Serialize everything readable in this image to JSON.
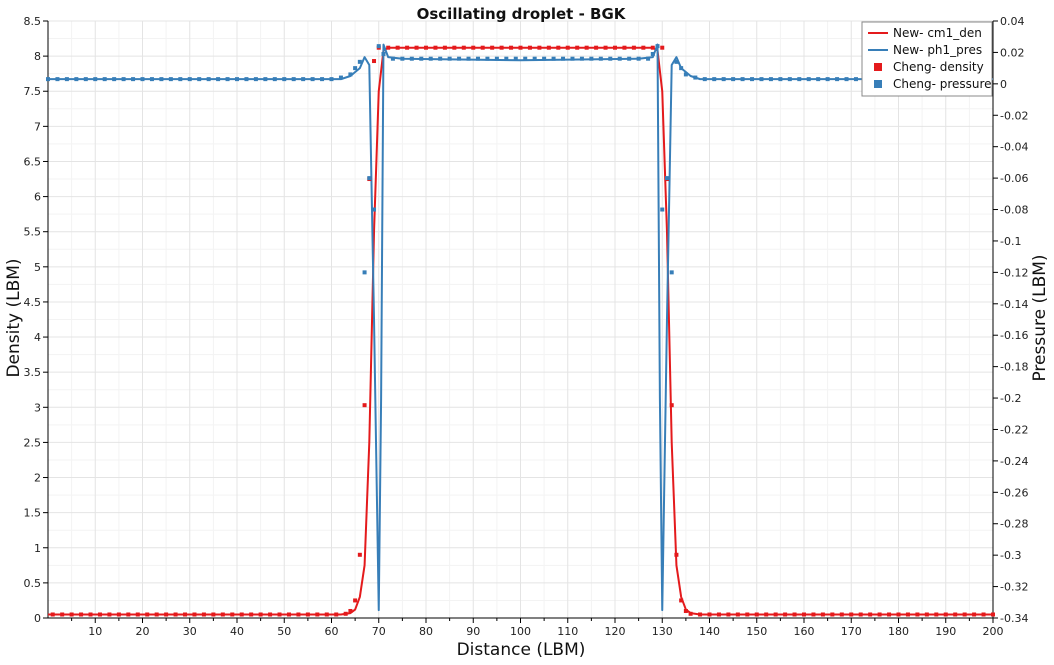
{
  "chart_data": {
    "type": "line",
    "title": "Oscillating droplet - BGK",
    "xlabel": "Distance (LBM)",
    "ylabel": "Density (LBM)",
    "y2label": "Pressure (LBM)",
    "xlim": [
      0,
      200
    ],
    "ylim": [
      0,
      8.5
    ],
    "y2lim": [
      -0.34,
      0.04
    ],
    "x_ticks": [
      10,
      20,
      30,
      40,
      50,
      60,
      70,
      80,
      90,
      100,
      110,
      120,
      130,
      140,
      150,
      160,
      170,
      180,
      190,
      200
    ],
    "y_ticks": [
      0,
      0.5,
      1,
      1.5,
      2,
      2.5,
      3,
      3.5,
      4,
      4.5,
      5,
      5.5,
      6,
      6.5,
      7,
      7.5,
      8,
      8.5
    ],
    "y2_ticks": [
      0.04,
      0.02,
      0,
      -0.02,
      -0.04,
      -0.06,
      -0.08,
      -0.1,
      -0.12,
      -0.14,
      -0.16,
      -0.18,
      -0.2,
      -0.22,
      -0.24,
      -0.26,
      -0.28,
      -0.3,
      -0.32,
      -0.34
    ],
    "grid": true,
    "legend_position": "top-right",
    "colors": {
      "red": "#e41a1c",
      "blue": "#377eb8"
    },
    "series": [
      {
        "name": "New- cm1_den",
        "kind": "line",
        "axis": "left",
        "color": "#e41a1c",
        "points": [
          [
            0,
            0.05
          ],
          [
            62,
            0.05
          ],
          [
            64,
            0.07
          ],
          [
            65,
            0.12
          ],
          [
            66,
            0.3
          ],
          [
            67,
            0.75
          ],
          [
            68,
            2.5
          ],
          [
            69,
            5.5
          ],
          [
            70,
            7.5
          ],
          [
            71,
            8.08
          ],
          [
            72,
            8.12
          ],
          [
            128,
            8.12
          ],
          [
            129,
            8.08
          ],
          [
            130,
            7.5
          ],
          [
            131,
            5.5
          ],
          [
            132,
            2.5
          ],
          [
            133,
            0.75
          ],
          [
            134,
            0.3
          ],
          [
            135,
            0.12
          ],
          [
            136,
            0.07
          ],
          [
            138,
            0.05
          ],
          [
            200,
            0.05
          ]
        ]
      },
      {
        "name": "New- ph1_pres",
        "kind": "line",
        "axis": "right",
        "color": "#377eb8",
        "points": [
          [
            0,
            0.003
          ],
          [
            62,
            0.003
          ],
          [
            64,
            0.005
          ],
          [
            66,
            0.01
          ],
          [
            67,
            0.017
          ],
          [
            68,
            0.012
          ],
          [
            69,
            -0.15
          ],
          [
            70,
            -0.335
          ],
          [
            70.5,
            -0.2
          ],
          [
            71,
            0.025
          ],
          [
            72,
            0.017
          ],
          [
            75,
            0.016
          ],
          [
            100,
            0.015
          ],
          [
            125,
            0.016
          ],
          [
            128,
            0.017
          ],
          [
            129,
            0.025
          ],
          [
            129.5,
            -0.2
          ],
          [
            130,
            -0.335
          ],
          [
            131,
            -0.15
          ],
          [
            132,
            0.012
          ],
          [
            133,
            0.017
          ],
          [
            134,
            0.01
          ],
          [
            136,
            0.005
          ],
          [
            138,
            0.003
          ],
          [
            200,
            0.003
          ]
        ]
      },
      {
        "name": "Cheng- density",
        "kind": "scatter",
        "axis": "left",
        "color": "#e41a1c",
        "points": [
          [
            1,
            0.05
          ],
          [
            3,
            0.05
          ],
          [
            5,
            0.05
          ],
          [
            7,
            0.05
          ],
          [
            9,
            0.05
          ],
          [
            11,
            0.05
          ],
          [
            13,
            0.05
          ],
          [
            15,
            0.05
          ],
          [
            17,
            0.05
          ],
          [
            19,
            0.05
          ],
          [
            21,
            0.05
          ],
          [
            23,
            0.05
          ],
          [
            25,
            0.05
          ],
          [
            27,
            0.05
          ],
          [
            29,
            0.05
          ],
          [
            31,
            0.05
          ],
          [
            33,
            0.05
          ],
          [
            35,
            0.05
          ],
          [
            37,
            0.05
          ],
          [
            39,
            0.05
          ],
          [
            41,
            0.05
          ],
          [
            43,
            0.05
          ],
          [
            45,
            0.05
          ],
          [
            47,
            0.05
          ],
          [
            49,
            0.05
          ],
          [
            51,
            0.05
          ],
          [
            53,
            0.05
          ],
          [
            55,
            0.05
          ],
          [
            57,
            0.05
          ],
          [
            59,
            0.05
          ],
          [
            61,
            0.05
          ],
          [
            63,
            0.06
          ],
          [
            64,
            0.1
          ],
          [
            65,
            0.25
          ],
          [
            66,
            0.9
          ],
          [
            67,
            3.03
          ],
          [
            68,
            6.25
          ],
          [
            69,
            7.93
          ],
          [
            70,
            8.12
          ],
          [
            72,
            8.12
          ],
          [
            74,
            8.12
          ],
          [
            76,
            8.12
          ],
          [
            78,
            8.12
          ],
          [
            80,
            8.12
          ],
          [
            82,
            8.12
          ],
          [
            84,
            8.12
          ],
          [
            86,
            8.12
          ],
          [
            88,
            8.12
          ],
          [
            90,
            8.12
          ],
          [
            92,
            8.12
          ],
          [
            94,
            8.12
          ],
          [
            96,
            8.12
          ],
          [
            98,
            8.12
          ],
          [
            100,
            8.12
          ],
          [
            102,
            8.12
          ],
          [
            104,
            8.12
          ],
          [
            106,
            8.12
          ],
          [
            108,
            8.12
          ],
          [
            110,
            8.12
          ],
          [
            112,
            8.12
          ],
          [
            114,
            8.12
          ],
          [
            116,
            8.12
          ],
          [
            118,
            8.12
          ],
          [
            120,
            8.12
          ],
          [
            122,
            8.12
          ],
          [
            124,
            8.12
          ],
          [
            126,
            8.12
          ],
          [
            128,
            8.12
          ],
          [
            130,
            8.12
          ],
          [
            131,
            6.25
          ],
          [
            132,
            3.03
          ],
          [
            133,
            0.9
          ],
          [
            134,
            0.25
          ],
          [
            135,
            0.1
          ],
          [
            136,
            0.06
          ],
          [
            138,
            0.05
          ],
          [
            140,
            0.05
          ],
          [
            142,
            0.05
          ],
          [
            144,
            0.05
          ],
          [
            146,
            0.05
          ],
          [
            148,
            0.05
          ],
          [
            150,
            0.05
          ],
          [
            152,
            0.05
          ],
          [
            154,
            0.05
          ],
          [
            156,
            0.05
          ],
          [
            158,
            0.05
          ],
          [
            160,
            0.05
          ],
          [
            162,
            0.05
          ],
          [
            164,
            0.05
          ],
          [
            166,
            0.05
          ],
          [
            168,
            0.05
          ],
          [
            170,
            0.05
          ],
          [
            172,
            0.05
          ],
          [
            174,
            0.05
          ],
          [
            176,
            0.05
          ],
          [
            178,
            0.05
          ],
          [
            180,
            0.05
          ],
          [
            182,
            0.05
          ],
          [
            184,
            0.05
          ],
          [
            186,
            0.05
          ],
          [
            188,
            0.05
          ],
          [
            190,
            0.05
          ],
          [
            192,
            0.05
          ],
          [
            194,
            0.05
          ],
          [
            196,
            0.05
          ],
          [
            198,
            0.05
          ],
          [
            200,
            0.05
          ]
        ]
      },
      {
        "name": "Cheng- pressure",
        "kind": "scatter",
        "axis": "right",
        "color": "#377eb8",
        "points": [
          [
            0,
            0.003
          ],
          [
            2,
            0.003
          ],
          [
            4,
            0.003
          ],
          [
            6,
            0.003
          ],
          [
            8,
            0.003
          ],
          [
            10,
            0.003
          ],
          [
            12,
            0.003
          ],
          [
            14,
            0.003
          ],
          [
            16,
            0.003
          ],
          [
            18,
            0.003
          ],
          [
            20,
            0.003
          ],
          [
            22,
            0.003
          ],
          [
            24,
            0.003
          ],
          [
            26,
            0.003
          ],
          [
            28,
            0.003
          ],
          [
            30,
            0.003
          ],
          [
            32,
            0.003
          ],
          [
            34,
            0.003
          ],
          [
            36,
            0.003
          ],
          [
            38,
            0.003
          ],
          [
            40,
            0.003
          ],
          [
            42,
            0.003
          ],
          [
            44,
            0.003
          ],
          [
            46,
            0.003
          ],
          [
            48,
            0.003
          ],
          [
            50,
            0.003
          ],
          [
            52,
            0.003
          ],
          [
            54,
            0.003
          ],
          [
            56,
            0.003
          ],
          [
            58,
            0.003
          ],
          [
            60,
            0.003
          ],
          [
            62,
            0.004
          ],
          [
            64,
            0.006
          ],
          [
            65,
            0.01
          ],
          [
            66,
            0.014
          ],
          [
            67,
            -0.12
          ],
          [
            68,
            -0.06
          ],
          [
            69,
            -0.08
          ],
          [
            70,
            0.024
          ],
          [
            71,
            0.019
          ],
          [
            73,
            0.016
          ],
          [
            75,
            0.016
          ],
          [
            77,
            0.016
          ],
          [
            79,
            0.016
          ],
          [
            81,
            0.016
          ],
          [
            83,
            0.016
          ],
          [
            85,
            0.016
          ],
          [
            87,
            0.016
          ],
          [
            89,
            0.016
          ],
          [
            91,
            0.016
          ],
          [
            93,
            0.016
          ],
          [
            95,
            0.016
          ],
          [
            97,
            0.016
          ],
          [
            99,
            0.016
          ],
          [
            101,
            0.016
          ],
          [
            103,
            0.016
          ],
          [
            105,
            0.016
          ],
          [
            107,
            0.016
          ],
          [
            109,
            0.016
          ],
          [
            111,
            0.016
          ],
          [
            113,
            0.016
          ],
          [
            115,
            0.016
          ],
          [
            117,
            0.016
          ],
          [
            119,
            0.016
          ],
          [
            121,
            0.016
          ],
          [
            123,
            0.016
          ],
          [
            125,
            0.016
          ],
          [
            127,
            0.016
          ],
          [
            128,
            0.019
          ],
          [
            129,
            0.024
          ],
          [
            130,
            -0.08
          ],
          [
            131,
            -0.06
          ],
          [
            132,
            -0.12
          ],
          [
            133,
            0.014
          ],
          [
            134,
            0.01
          ],
          [
            135,
            0.006
          ],
          [
            137,
            0.004
          ],
          [
            139,
            0.003
          ],
          [
            141,
            0.003
          ],
          [
            143,
            0.003
          ],
          [
            145,
            0.003
          ],
          [
            147,
            0.003
          ],
          [
            149,
            0.003
          ],
          [
            151,
            0.003
          ],
          [
            153,
            0.003
          ],
          [
            155,
            0.003
          ],
          [
            157,
            0.003
          ],
          [
            159,
            0.003
          ],
          [
            161,
            0.003
          ],
          [
            163,
            0.003
          ],
          [
            165,
            0.003
          ],
          [
            167,
            0.003
          ],
          [
            169,
            0.003
          ],
          [
            171,
            0.003
          ],
          [
            173,
            0.003
          ],
          [
            175,
            0.003
          ],
          [
            177,
            0.003
          ],
          [
            179,
            0.003
          ],
          [
            181,
            0.003
          ],
          [
            183,
            0.003
          ],
          [
            185,
            0.003
          ],
          [
            187,
            0.003
          ],
          [
            189,
            0.003
          ],
          [
            191,
            0.003
          ],
          [
            193,
            0.003
          ],
          [
            195,
            0.003
          ],
          [
            197,
            0.003
          ],
          [
            199,
            0.003
          ]
        ]
      }
    ]
  }
}
